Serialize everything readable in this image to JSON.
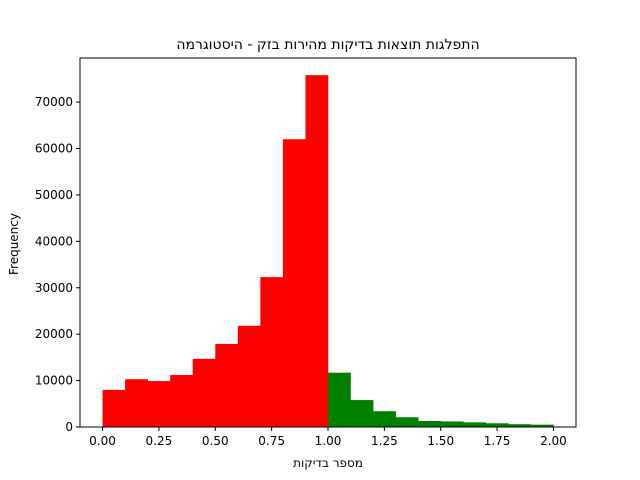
{
  "chart_data": {
    "type": "bar",
    "title": "התפלגות תוצאות בדיקות מהירות בזק - היסטוגרמה",
    "xlabel": "מספר בדיקות",
    "ylabel": "Frequency",
    "xlim": [
      -0.1,
      2.1
    ],
    "ylim": [
      0,
      79500
    ],
    "grid": false,
    "legend": "none",
    "x_ticks": [
      0.0,
      0.25,
      0.5,
      0.75,
      1.0,
      1.25,
      1.5,
      1.75,
      2.0
    ],
    "x_tick_labels": [
      "0.00",
      "0.25",
      "0.50",
      "0.75",
      "1.00",
      "1.25",
      "1.50",
      "1.75",
      "2.00"
    ],
    "y_ticks": [
      0,
      10000,
      20000,
      30000,
      40000,
      50000,
      60000,
      70000
    ],
    "y_tick_labels": [
      "0",
      "10000",
      "20000",
      "30000",
      "40000",
      "50000",
      "60000",
      "70000"
    ],
    "bin_edges": [
      0.0,
      0.1,
      0.2,
      0.3,
      0.4,
      0.5,
      0.6,
      0.7,
      0.8,
      0.9,
      1.0,
      1.1,
      1.2,
      1.3,
      1.4,
      1.5,
      1.6,
      1.7,
      1.8,
      1.9,
      2.0
    ],
    "values": [
      8000,
      10300,
      9900,
      11200,
      14700,
      17900,
      21800,
      32300,
      62000,
      75800,
      11700,
      5800,
      3400,
      2100,
      1300,
      1200,
      1000,
      800,
      600,
      500
    ],
    "bar_colors": [
      "#ff0000",
      "#ff0000",
      "#ff0000",
      "#ff0000",
      "#ff0000",
      "#ff0000",
      "#ff0000",
      "#ff0000",
      "#ff0000",
      "#ff0000",
      "#008000",
      "#008000",
      "#008000",
      "#008000",
      "#008000",
      "#008000",
      "#008000",
      "#008000",
      "#008000",
      "#008000"
    ]
  }
}
